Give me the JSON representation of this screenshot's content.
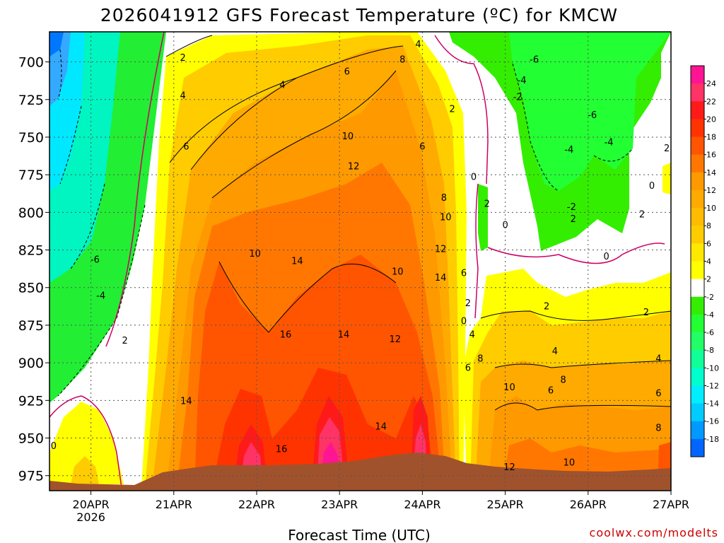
{
  "title": "2026041912 GFS Forecast Temperature (ºC) for KMCW",
  "xlabel": "Forecast Time (UTC)",
  "credit": "coolwx.com/modelts",
  "chart_data": {
    "type": "heatmap",
    "title": "2026041912 GFS Forecast Temperature (ºC) for KMCW",
    "xlabel": "Forecast Time (UTC)",
    "ylabel": "",
    "x_ticks": [
      {
        "label": "20APR",
        "sub": "2026",
        "t": 0.5
      },
      {
        "label": "21APR",
        "sub": "",
        "t": 1.5
      },
      {
        "label": "22APR",
        "sub": "",
        "t": 2.5
      },
      {
        "label": "23APR",
        "sub": "",
        "t": 3.5
      },
      {
        "label": "24APR",
        "sub": "",
        "t": 4.5
      },
      {
        "label": "25APR",
        "sub": "",
        "t": 5.5
      },
      {
        "label": "26APR",
        "sub": "",
        "t": 6.5
      },
      {
        "label": "27APR",
        "sub": "",
        "t": 7.5
      }
    ],
    "xlim": [
      0,
      7.5
    ],
    "y_ticks": [
      700,
      725,
      750,
      775,
      800,
      825,
      850,
      875,
      900,
      925,
      950,
      975
    ],
    "ylim": [
      680,
      985
    ],
    "y_reversed": true,
    "grid": true,
    "colorbar": {
      "labels": [
        24,
        22,
        20,
        18,
        16,
        14,
        12,
        10,
        8,
        6,
        4,
        2,
        -2,
        -4,
        -6,
        -8,
        -10,
        -12,
        -14,
        -16,
        -18
      ],
      "colors": [
        "#ff1493",
        "#ff3366",
        "#ff1a1a",
        "#ff3300",
        "#ff5500",
        "#ff7700",
        "#ff9900",
        "#ffaa00",
        "#ffbb00",
        "#ffcc00",
        "#ffe800",
        "#ffff00",
        "#ffffff",
        "#33ee00",
        "#22ff33",
        "#22ff66",
        "#11ff99",
        "#00ffcc",
        "#00eeff",
        "#00ccff",
        "#0099ff",
        "#0066ff"
      ]
    },
    "contour_labels": [
      {
        "text": "2",
        "t": 1.61,
        "p": 697
      },
      {
        "text": "4",
        "t": 1.61,
        "p": 722
      },
      {
        "text": "6",
        "t": 1.65,
        "p": 756
      },
      {
        "text": "4",
        "t": 2.81,
        "p": 715
      },
      {
        "text": "6",
        "t": 3.59,
        "p": 706
      },
      {
        "text": "8",
        "t": 4.26,
        "p": 698
      },
      {
        "text": "4",
        "t": 4.45,
        "p": 688
      },
      {
        "text": "2",
        "t": 4.86,
        "p": 731
      },
      {
        "text": "10",
        "t": 3.6,
        "p": 749
      },
      {
        "text": "6",
        "t": 4.5,
        "p": 756
      },
      {
        "text": "12",
        "t": 3.67,
        "p": 769
      },
      {
        "text": "8",
        "t": 4.76,
        "p": 790
      },
      {
        "text": "10",
        "t": 4.78,
        "p": 803
      },
      {
        "text": "12",
        "t": 4.72,
        "p": 824
      },
      {
        "text": "10",
        "t": 2.48,
        "p": 827
      },
      {
        "text": "14",
        "t": 2.99,
        "p": 832
      },
      {
        "text": "10",
        "t": 4.2,
        "p": 839
      },
      {
        "text": "14",
        "t": 4.72,
        "p": 843
      },
      {
        "text": "6",
        "t": 5.0,
        "p": 840
      },
      {
        "text": "16",
        "t": 2.85,
        "p": 881
      },
      {
        "text": "14",
        "t": 3.55,
        "p": 881
      },
      {
        "text": "12",
        "t": 4.17,
        "p": 884
      },
      {
        "text": "14",
        "t": 1.65,
        "p": 925
      },
      {
        "text": "16",
        "t": 2.8,
        "p": 957
      },
      {
        "text": "14",
        "t": 4.0,
        "p": 942
      },
      {
        "text": "-6",
        "t": 0.55,
        "p": 831
      },
      {
        "text": "-4",
        "t": 0.62,
        "p": 855
      },
      {
        "text": "2",
        "t": 0.91,
        "p": 885
      },
      {
        "text": "0",
        "t": 0.05,
        "p": 955
      },
      {
        "text": "2",
        "t": 5.05,
        "p": 860
      },
      {
        "text": "0",
        "t": 5.0,
        "p": 872
      },
      {
        "text": "4",
        "t": 5.1,
        "p": 881
      },
      {
        "text": "6",
        "t": 5.05,
        "p": 903
      },
      {
        "text": "8",
        "t": 5.2,
        "p": 897
      },
      {
        "text": "10",
        "t": 5.55,
        "p": 916
      },
      {
        "text": "12",
        "t": 5.55,
        "p": 969
      },
      {
        "text": "10",
        "t": 6.27,
        "p": 966
      },
      {
        "text": "6",
        "t": 6.05,
        "p": 918
      },
      {
        "text": "8",
        "t": 6.2,
        "p": 911
      },
      {
        "text": "4",
        "t": 6.1,
        "p": 892
      },
      {
        "text": "2",
        "t": 6.0,
        "p": 862
      },
      {
        "text": "4",
        "t": 7.35,
        "p": 897
      },
      {
        "text": "6",
        "t": 7.35,
        "p": 920
      },
      {
        "text": "8",
        "t": 7.35,
        "p": 943
      },
      {
        "text": "2",
        "t": 7.2,
        "p": 866
      },
      {
        "text": "0",
        "t": 5.12,
        "p": 776
      },
      {
        "text": "2",
        "t": 5.28,
        "p": 794
      },
      {
        "text": "0",
        "t": 5.5,
        "p": 808
      },
      {
        "text": "2",
        "t": 6.32,
        "p": 804
      },
      {
        "text": "0",
        "t": 6.72,
        "p": 829
      },
      {
        "text": "2",
        "t": 7.15,
        "p": 801
      },
      {
        "text": "0",
        "t": 7.27,
        "p": 782
      },
      {
        "text": "2",
        "t": 7.45,
        "p": 757
      },
      {
        "text": "-6",
        "t": 5.85,
        "p": 698
      },
      {
        "text": "-4",
        "t": 5.7,
        "p": 712
      },
      {
        "text": "-2",
        "t": 5.65,
        "p": 723
      },
      {
        "text": "-6",
        "t": 6.55,
        "p": 735
      },
      {
        "text": "-4",
        "t": 6.75,
        "p": 753
      },
      {
        "text": "-4",
        "t": 6.27,
        "p": 758
      },
      {
        "text": "-2",
        "t": 6.3,
        "p": 796
      }
    ]
  }
}
